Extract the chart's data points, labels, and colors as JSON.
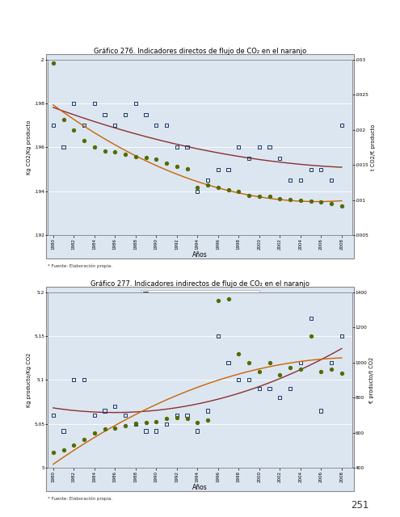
{
  "title1": "Gráfico 276. Indicadores directos de flujo de CO₂ en el naranjo",
  "title2": "Gráfico 277. Indicadores indirectos de flujo de CO₂ en el naranjo",
  "bg_color": "#dce6f1",
  "page_bg": "#ffffff",
  "footnote": "* Fuente: Elaboración propia.",
  "page_number": "251",
  "chart1": {
    "years": [
      1980,
      1981,
      1982,
      1983,
      1984,
      1985,
      1986,
      1987,
      1988,
      1989,
      1990,
      1991,
      1992,
      1993,
      1994,
      1995,
      1996,
      1997,
      1998,
      1999,
      2000,
      2001,
      2002,
      2003,
      2004,
      2005,
      2006,
      2007,
      2008
    ],
    "vals_sq": [
      0.197,
      0.196,
      0.198,
      0.197,
      0.198,
      0.1975,
      0.197,
      0.1975,
      0.198,
      0.1975,
      0.197,
      0.197,
      0.196,
      0.196,
      0.194,
      0.1945,
      0.195,
      0.195,
      0.196,
      0.1955,
      0.196,
      0.196,
      0.1955,
      0.1945,
      0.1945,
      0.195,
      0.195,
      0.1945,
      0.197
    ],
    "vals_dot": [
      0.00295,
      0.00215,
      0.002,
      0.00185,
      0.00175,
      0.0017,
      0.00168,
      0.00165,
      0.00162,
      0.0016,
      0.00158,
      0.00152,
      0.00148,
      0.00145,
      0.00118,
      0.00122,
      0.00118,
      0.00115,
      0.00112,
      0.00107,
      0.00105,
      0.00105,
      0.00102,
      0.00101,
      0.001,
      0.00099,
      0.00097,
      0.00095,
      0.00092
    ],
    "ylim_left": [
      0.192,
      0.2
    ],
    "ylim_right": [
      0.0005,
      0.003
    ],
    "yticks_left": [
      0.192,
      0.194,
      0.196,
      0.198,
      0.2
    ],
    "ytick_labels_left": [
      ".192",
      ".194",
      ".196",
      ".198",
      ".2"
    ],
    "yticks_right": [
      0.0005,
      0.001,
      0.0015,
      0.002,
      0.0025,
      0.003
    ],
    "ytick_labels_right": [
      ".0005",
      ".001",
      ".0015",
      ".002",
      ".0025",
      ".003"
    ],
    "xlabel": "Años",
    "ylabel_left": "Kg CO2/Kg producto",
    "ylabel_right": "t CO2/€ producto",
    "legend1": "Kg CO2/Kg producto",
    "legend2": "t CO2/€ producto",
    "trend1_color": "#8b3030",
    "trend2_color": "#c86400",
    "sq_color": "#1f3864",
    "dot_color": "#556b00"
  },
  "chart2": {
    "years": [
      1980,
      1981,
      1982,
      1983,
      1984,
      1985,
      1986,
      1987,
      1988,
      1989,
      1990,
      1991,
      1992,
      1993,
      1994,
      1995,
      1996,
      1997,
      1998,
      1999,
      2000,
      2001,
      2002,
      2003,
      2004,
      2005,
      2006,
      2007,
      2008
    ],
    "vals_sq": [
      5.06,
      5.042,
      5.1,
      5.1,
      5.06,
      5.065,
      5.07,
      5.06,
      5.05,
      5.042,
      5.042,
      5.05,
      5.06,
      5.06,
      5.042,
      5.065,
      5.15,
      5.12,
      5.1,
      5.1,
      5.09,
      5.09,
      5.08,
      5.09,
      5.12,
      5.17,
      5.065,
      5.12,
      5.15
    ],
    "vals_dot": [
      490,
      500,
      530,
      560,
      600,
      620,
      625,
      640,
      655,
      660,
      665,
      680,
      685,
      680,
      660,
      670,
      1350,
      1360,
      1050,
      1000,
      950,
      1000,
      930,
      970,
      960,
      1150,
      950,
      960,
      940
    ],
    "ylim_left": [
      5.0,
      5.2
    ],
    "ylim_right": [
      400,
      1400
    ],
    "yticks_left": [
      5.0,
      5.05,
      5.1,
      5.15,
      5.2
    ],
    "ytick_labels_left": [
      "5",
      "5.05",
      "5.1",
      "5.15",
      "5.2"
    ],
    "yticks_right": [
      400,
      600,
      800,
      1000,
      1200,
      1400
    ],
    "ytick_labels_right": [
      "400",
      "600",
      "800",
      "1000",
      "1200",
      "1400"
    ],
    "xlabel": "Años",
    "ylabel_left": "Kg producto/Kg CO2",
    "ylabel_right": "€ producto/t CO2",
    "legend1": "Kg producto/Kg CO2",
    "legend2": "€ producto/t CO2",
    "trend1_color": "#8b3030",
    "trend2_color": "#c86400",
    "sq_color": "#1f3864",
    "dot_color": "#556b00"
  }
}
